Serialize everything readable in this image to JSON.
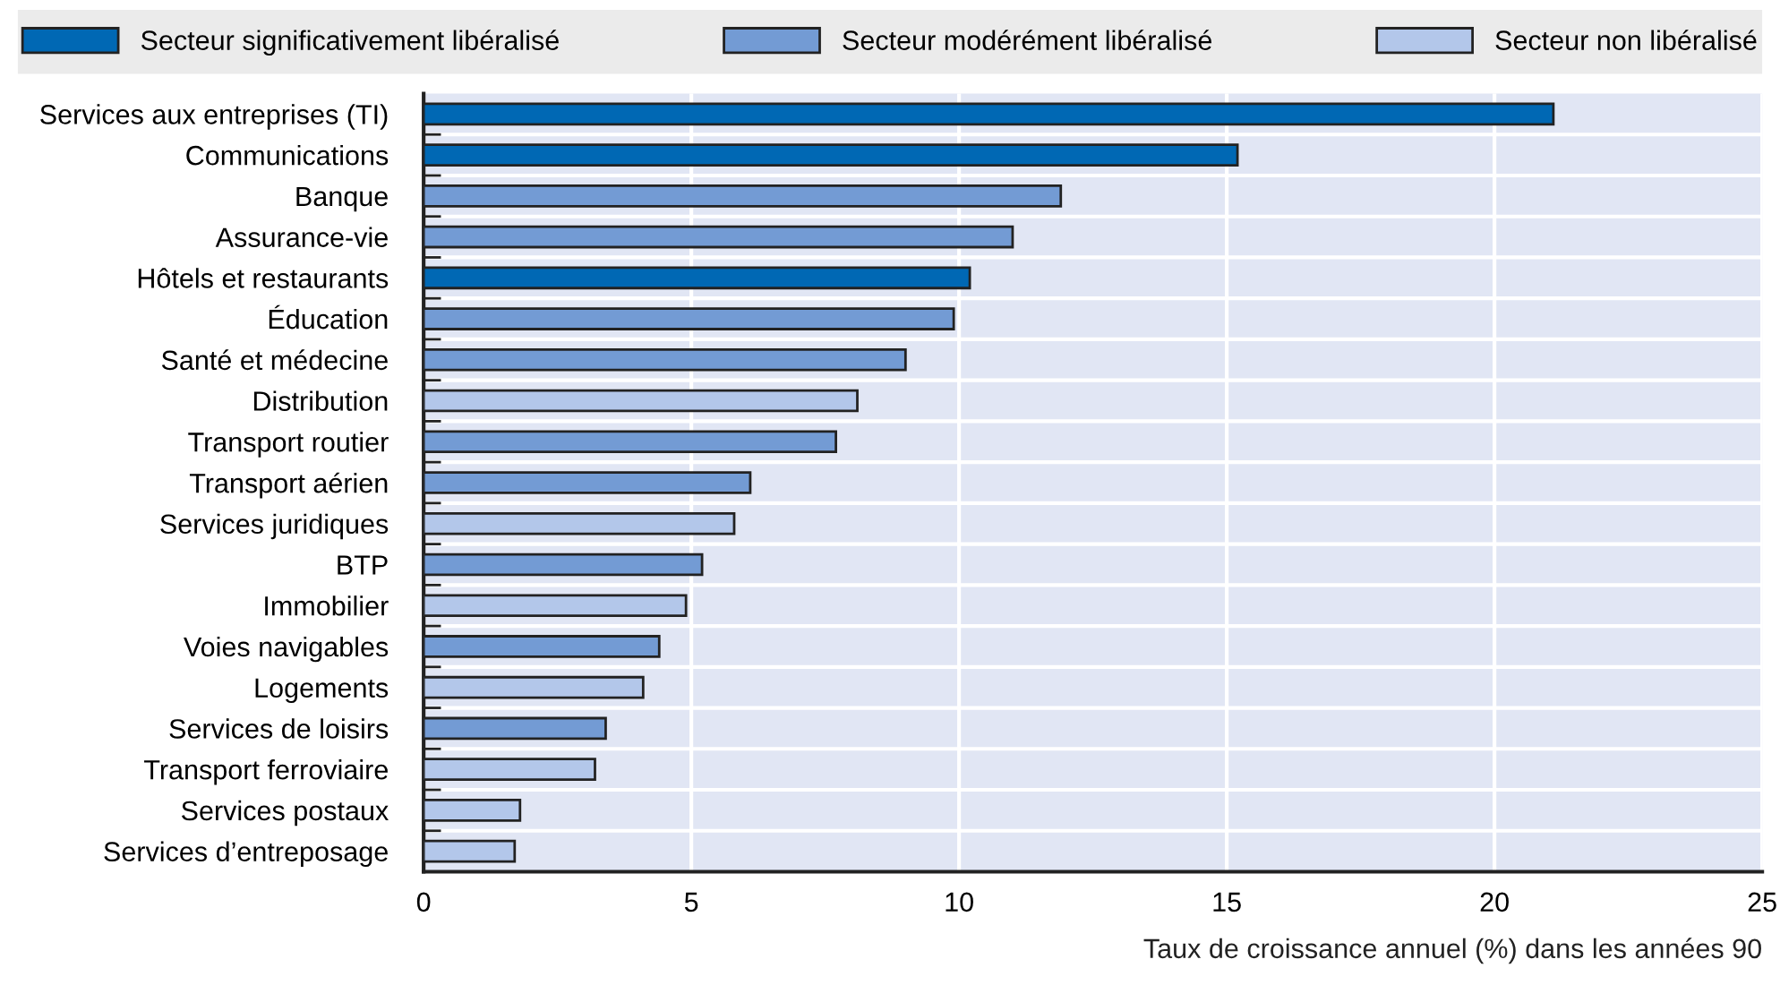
{
  "chart_data": {
    "type": "bar",
    "orientation": "horizontal",
    "categories": [
      "Services aux entreprises (TI)",
      "Communications",
      "Banque",
      "Assurance-vie",
      "Hôtels et restaurants",
      "Éducation",
      "Santé et médecine",
      "Distribution",
      "Transport routier",
      "Transport aérien",
      "Services juridiques",
      "BTP",
      "Immobilier",
      "Voies navigables",
      "Logements",
      "Services de loisirs",
      "Transport ferroviaire",
      "Services postaux",
      "Services d’entreposage"
    ],
    "series": [
      {
        "name": "Secteur significativement libéralisé",
        "color": "#0068b4",
        "values": [
          21.1,
          15.2,
          null,
          null,
          10.2,
          null,
          null,
          null,
          null,
          null,
          null,
          null,
          null,
          null,
          null,
          null,
          null,
          null,
          null
        ]
      },
      {
        "name": "Secteur modérément libéralisé",
        "color": "#739bd4",
        "values": [
          null,
          null,
          11.9,
          11.0,
          null,
          9.9,
          9.0,
          null,
          7.7,
          6.1,
          null,
          5.2,
          null,
          4.4,
          null,
          3.4,
          null,
          null,
          null
        ]
      },
      {
        "name": "Secteur non libéralisé",
        "color": "#b3c7ea",
        "values": [
          null,
          null,
          null,
          null,
          null,
          null,
          null,
          8.1,
          null,
          null,
          5.8,
          null,
          4.9,
          null,
          4.1,
          null,
          3.2,
          1.8,
          1.7
        ]
      }
    ],
    "xlim": [
      0,
      25
    ],
    "xticks": [
      0,
      5,
      10,
      15,
      20,
      25
    ],
    "xlabel": "Taux de croissance annuel (%) dans les années 90",
    "grid": true,
    "legend": "top"
  }
}
